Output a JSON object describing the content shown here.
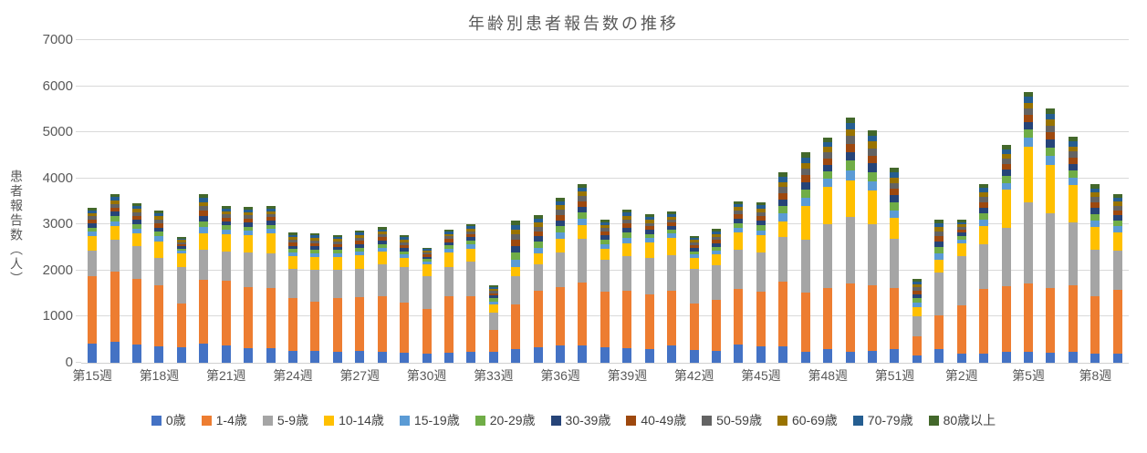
{
  "title": "年齢別患者報告数の推移",
  "y_axis_title": "患者報告数（人）",
  "palette": {
    "background": "#FFFFFF",
    "grid": "#D9D9D9",
    "axis_line": "#D0D0D0",
    "title_text": "#595959",
    "axis_text": "#595959",
    "legend_text": "#404040"
  },
  "chart_data": {
    "type": "bar",
    "stacked": true,
    "title": "年齢別患者報告数の推移",
    "xlabel": "",
    "ylabel": "患者報告数（人）",
    "ylim": [
      0,
      7000
    ],
    "y_ticks": [
      0,
      1000,
      2000,
      3000,
      4000,
      5000,
      6000,
      7000
    ],
    "grid": true,
    "legend_position": "bottom",
    "x_tick_interval": 3,
    "visible_x_tick_labels": [
      "第15週",
      "第18週",
      "第21週",
      "第24週",
      "第27週",
      "第30週",
      "第33週",
      "第36週",
      "第39週",
      "第42週",
      "第45週",
      "第48週",
      "第51週",
      "第2週",
      "第5週",
      "第8週"
    ],
    "categories": [
      "第15週",
      "第16週",
      "第17週",
      "第18週",
      "第19週",
      "第20週",
      "第21週",
      "第22週",
      "第23週",
      "第24週",
      "第25週",
      "第26週",
      "第27週",
      "第28週",
      "第29週",
      "第30週",
      "第31週",
      "第32週",
      "第33週",
      "第34週",
      "第35週",
      "第36週",
      "第37週",
      "第38週",
      "第39週",
      "第40週",
      "第41週",
      "第42週",
      "第43週",
      "第44週",
      "第45週",
      "第46週",
      "第47週",
      "第48週",
      "第49週",
      "第50週",
      "第51週",
      "第52週",
      "第1週",
      "第2週",
      "第3週",
      "第4週",
      "第5週",
      "第6週",
      "第7週",
      "第8週",
      "第9週"
    ],
    "series": [
      {
        "name": "0歳",
        "color": "#4472C4",
        "values": [
          420,
          455,
          390,
          355,
          335,
          420,
          380,
          320,
          320,
          255,
          250,
          240,
          255,
          240,
          220,
          200,
          220,
          230,
          245,
          300,
          340,
          380,
          380,
          330,
          310,
          305,
          370,
          275,
          255,
          400,
          350,
          355,
          240,
          290,
          240,
          265,
          290,
          160,
          300,
          190,
          190,
          235,
          245,
          225,
          235,
          205,
          190
        ]
      },
      {
        "name": "1-4歳",
        "color": "#ED7D31",
        "values": [
          1465,
          1515,
          1430,
          1330,
          945,
          1385,
          1405,
          1320,
          1300,
          1155,
          1080,
          1155,
          1170,
          1205,
          1090,
          960,
          1230,
          1215,
          475,
          960,
          1215,
          1260,
          1360,
          1210,
          1250,
          1185,
          1185,
          1015,
          1100,
          1195,
          1190,
          1395,
          1285,
          1330,
          1480,
          1420,
          1330,
          410,
          730,
          1055,
          1405,
          1420,
          1475,
          1395,
          1440,
          1240,
          1385
        ]
      },
      {
        "name": "5-9歳",
        "color": "#A5A5A5",
        "values": [
          545,
          690,
          710,
          595,
          800,
          640,
          625,
          755,
          745,
          625,
          685,
          620,
          610,
          690,
          760,
          725,
          630,
          745,
          375,
          625,
          580,
          745,
          940,
          700,
          760,
          775,
          780,
          745,
          760,
          855,
          855,
          975,
          1150,
          1385,
          1450,
          1315,
          1075,
          445,
          920,
          1065,
          980,
          1270,
          1765,
          1615,
          1365,
          1000,
          855
        ]
      },
      {
        "name": "10-14歳",
        "color": "#FFC000",
        "values": [
          310,
          300,
          275,
          350,
          285,
          360,
          385,
          365,
          440,
          275,
          285,
          275,
          295,
          275,
          195,
          250,
          310,
          290,
          170,
          185,
          230,
          295,
          310,
          240,
          280,
          340,
          380,
          230,
          230,
          375,
          365,
          340,
          725,
          810,
          790,
          730,
          440,
          185,
          285,
          285,
          385,
          825,
          1205,
          1055,
          810,
          495,
          395
        ]
      },
      {
        "name": "15-19歳",
        "color": "#5B9BD5",
        "values": [
          100,
          110,
          105,
          110,
          60,
          135,
          95,
          100,
          95,
          80,
          80,
          80,
          85,
          85,
          80,
          60,
          80,
          85,
          65,
          165,
          135,
          145,
          140,
          100,
          115,
          100,
          90,
          80,
          90,
          110,
          115,
          170,
          185,
          170,
          220,
          210,
          175,
          100,
          140,
          80,
          145,
          155,
          190,
          195,
          170,
          150,
          135
        ]
      },
      {
        "name": "20-29歳",
        "color": "#70AD47",
        "values": [
          95,
          105,
          100,
          100,
          55,
          125,
          90,
          95,
          90,
          80,
          75,
          75,
          80,
          80,
          75,
          55,
          75,
          80,
          65,
          155,
          125,
          135,
          135,
          95,
          110,
          90,
          85,
          75,
          85,
          100,
          110,
          160,
          175,
          160,
          205,
          200,
          165,
          95,
          130,
          75,
          135,
          145,
          175,
          185,
          155,
          140,
          125
        ]
      },
      {
        "name": "30-39歳",
        "color": "#264478",
        "values": [
          90,
          100,
          90,
          95,
          50,
          120,
          85,
          85,
          85,
          70,
          70,
          70,
          75,
          75,
          70,
          50,
          70,
          75,
          60,
          140,
          120,
          125,
          125,
          90,
          100,
          85,
          80,
          65,
          80,
          95,
          100,
          150,
          160,
          150,
          190,
          185,
          155,
          85,
          120,
          70,
          125,
          135,
          165,
          170,
          145,
          130,
          115
        ]
      },
      {
        "name": "40-49歳",
        "color": "#9E480E",
        "values": [
          80,
          90,
          85,
          90,
          45,
          110,
          80,
          80,
          80,
          65,
          65,
          60,
          70,
          70,
          65,
          45,
          65,
          70,
          55,
          135,
          110,
          120,
          115,
          80,
          95,
          80,
          70,
          65,
          70,
          90,
          95,
          140,
          150,
          140,
          175,
          170,
          140,
          80,
          115,
          65,
          120,
          125,
          155,
          160,
          135,
          120,
          110
        ]
      },
      {
        "name": "50-59歳",
        "color": "#636363",
        "values": [
          75,
          85,
          80,
          80,
          45,
          100,
          75,
          75,
          70,
          60,
          60,
          60,
          65,
          65,
          60,
          45,
          60,
          65,
          50,
          120,
          100,
          110,
          105,
          75,
          85,
          75,
          65,
          60,
          65,
          80,
          85,
          125,
          140,
          130,
          165,
          160,
          130,
          75,
          105,
          60,
          110,
          115,
          140,
          145,
          125,
          110,
          100
        ]
      },
      {
        "name": "60-69歳",
        "color": "#997300",
        "values": [
          70,
          75,
          75,
          75,
          40,
          95,
          65,
          65,
          65,
          55,
          55,
          50,
          60,
          55,
          55,
          40,
          55,
          60,
          45,
          110,
          90,
          100,
          100,
          70,
          80,
          70,
          60,
          50,
          60,
          75,
          80,
          115,
          130,
          120,
          150,
          145,
          120,
          70,
          95,
          55,
          100,
          105,
          130,
          135,
          115,
          100,
          90
        ]
      },
      {
        "name": "70-79歳",
        "color": "#255E91",
        "values": [
          60,
          70,
          65,
          65,
          35,
          85,
          60,
          60,
          60,
          55,
          55,
          50,
          55,
          55,
          50,
          35,
          50,
          55,
          40,
          100,
          85,
          90,
          90,
          65,
          70,
          60,
          55,
          50,
          55,
          65,
          75,
          110,
          115,
          105,
          135,
          130,
          110,
          60,
          90,
          55,
          95,
          100,
          120,
          120,
          105,
          95,
          85
        ]
      },
      {
        "name": "80歳以上",
        "color": "#43682B",
        "values": [
          55,
          65,
          60,
          60,
          30,
          75,
          55,
          55,
          55,
          50,
          45,
          40,
          50,
          45,
          40,
          30,
          45,
          45,
          40,
          95,
          75,
          80,
          80,
          55,
          65,
          55,
          55,
          40,
          55,
          60,
          65,
          95,
          105,
          100,
          120,
          120,
          100,
          55,
          80,
          45,
          80,
          90,
          105,
          110,
          100,
          85,
          75
        ]
      }
    ]
  }
}
